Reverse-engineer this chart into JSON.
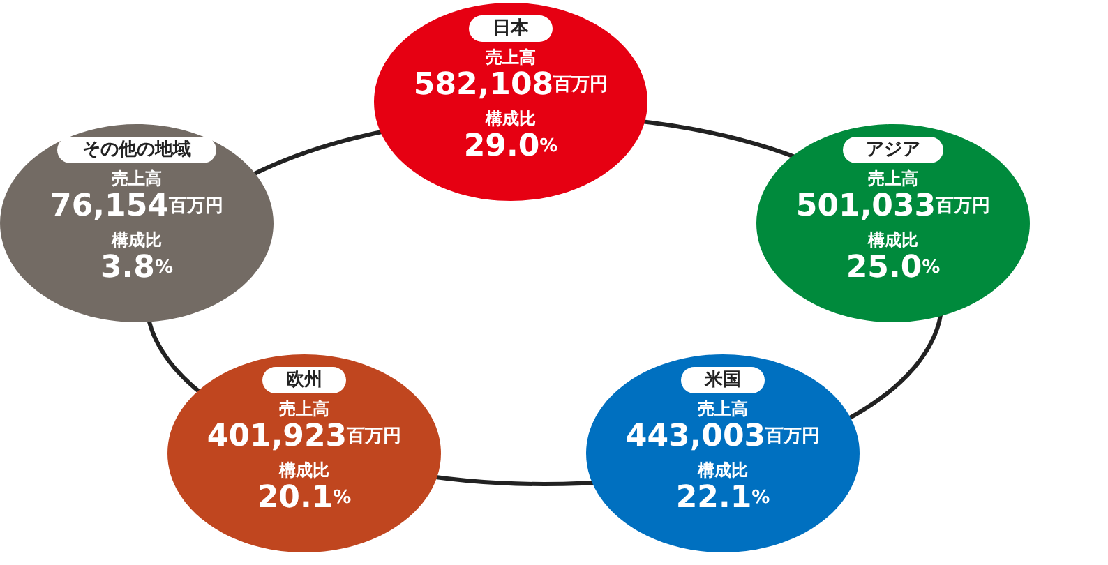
{
  "chart_data": {
    "type": "other",
    "categories": [
      "日本",
      "アジア",
      "米国",
      "欧州",
      "その他の地域"
    ],
    "series": [
      {
        "name": "売上高",
        "colors": [
          "#e60012",
          "#008a3c",
          "#0070c0",
          "#c0461f",
          "#736b64"
        ],
        "values": [
          582108,
          501033,
          443003,
          401923,
          76154
        ],
        "value_labels": [
          "582,108百万円",
          "501,033百万円",
          "443,003百万円",
          "401,923百万円",
          "76,154百万円"
        ]
      },
      {
        "name": "構成比",
        "colors": [
          "#e60012",
          "#008a3c",
          "#0070c0",
          "#c0461f",
          "#736b64"
        ],
        "values": [
          29.0,
          25.0,
          22.1,
          20.1,
          3.8
        ],
        "value_labels": [
          "29.0%",
          "25.0%",
          "22.1%",
          "20.1%",
          "3.8%"
        ]
      }
    ]
  }
}
